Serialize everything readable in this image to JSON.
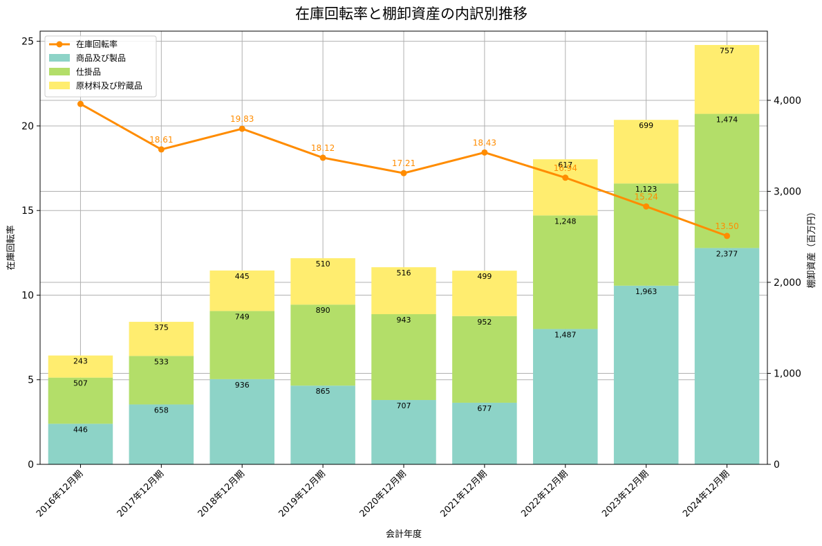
{
  "chart_data": {
    "type": "bar",
    "title": "在庫回転率と棚卸資産の内訳別推移",
    "xlabel": "会計年度",
    "ylabel_left": "在庫回転率",
    "ylabel_right": "棚卸資産（百万円）",
    "categories": [
      "2016年12月期",
      "2017年12月期",
      "2018年12月期",
      "2019年12月期",
      "2020年12月期",
      "2021年12月期",
      "2022年12月期",
      "2023年12月期",
      "2024年12月期"
    ],
    "ylim_left": [
      0,
      25.6
    ],
    "ylim_right": [
      0,
      4760
    ],
    "yticks_left": [
      "0",
      "5",
      "10",
      "15",
      "20",
      "25"
    ],
    "yticks_right": [
      "0",
      "1,000",
      "2,000",
      "3,000",
      "4,000"
    ],
    "grid": true,
    "legend_position": "upper-left",
    "series": [
      {
        "name": "商品及び製品",
        "kind": "stacked-bar",
        "axis": "right",
        "color": "#8dd3c7",
        "values": [
          446,
          658,
          936,
          865,
          707,
          677,
          1487,
          1963,
          2377
        ],
        "labels": [
          "446",
          "658",
          "936",
          "865",
          "707",
          "677",
          "1,487",
          "1,963",
          "2,377"
        ]
      },
      {
        "name": "仕掛品",
        "kind": "stacked-bar",
        "axis": "right",
        "color": "#b3de69",
        "values": [
          507,
          533,
          749,
          890,
          943,
          952,
          1248,
          1123,
          1474
        ],
        "labels": [
          "507",
          "533",
          "749",
          "890",
          "943",
          "952",
          "1,248",
          "1,123",
          "1,474"
        ]
      },
      {
        "name": "原材料及び貯蔵品",
        "kind": "stacked-bar",
        "axis": "right",
        "color": "#ffed6f",
        "values": [
          243,
          375,
          445,
          510,
          516,
          499,
          617,
          699,
          757
        ],
        "labels": [
          "243",
          "375",
          "445",
          "510",
          "516",
          "499",
          "617",
          "699",
          "757"
        ]
      },
      {
        "name": "在庫回転率",
        "kind": "line",
        "axis": "left",
        "color": "#ff8c00",
        "values": [
          21.3,
          18.61,
          19.83,
          18.12,
          17.21,
          18.43,
          16.94,
          15.24,
          13.5
        ],
        "labels": [
          "",
          "18.61",
          "19.83",
          "18.12",
          "17.21",
          "18.43",
          "16.94",
          "15.24",
          "13.50"
        ]
      }
    ]
  }
}
